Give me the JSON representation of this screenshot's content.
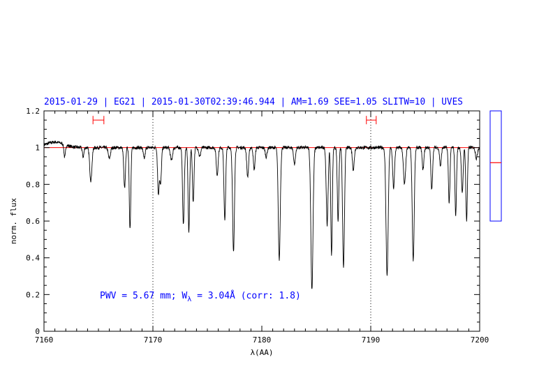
{
  "chart_data": {
    "type": "line",
    "title": "2015-01-29 | EG21 | 2015-01-30T02:39:46.944 | AM=1.69 SEE=1.05 SLITW=10 | UVES",
    "xlabel": "λ(AA)",
    "ylabel": "norm. flux",
    "xlim": [
      7160,
      7200
    ],
    "ylim": [
      0,
      1.2
    ],
    "xticks": [
      7160,
      7170,
      7180,
      7190,
      7200
    ],
    "yticks": [
      0,
      0.2,
      0.4,
      0.6,
      0.8,
      1,
      1.2
    ],
    "vlines_dotted": [
      7170,
      7190
    ],
    "reference_line": 1.0,
    "continuum_windows": [
      {
        "x0": 7164.5,
        "x1": 7165.5,
        "y": 1.15
      },
      {
        "x0": 7189.6,
        "x1": 7190.5,
        "y": 1.15
      }
    ],
    "annotation": {
      "prefix": "PWV = 5.67 mm; W",
      "subscript": "λ",
      "suffix": " = 3.04Å (corr: 1.8)"
    },
    "colors": {
      "title": "#0000ff",
      "annotation": "#0000ff",
      "reference": "#ff0000",
      "spectrum": "#000000",
      "frame": "#000000",
      "sidebar_frame": "#0000ff",
      "sidebar_mark": "#ff0000"
    },
    "sidebar_level": 0.53,
    "continuum_level": 1.0,
    "absorption_lines": [
      [
        7161.9,
        0.07,
        0.1
      ],
      [
        7163.6,
        0.05,
        0.1
      ],
      [
        7164.3,
        0.18,
        0.14
      ],
      [
        7166.0,
        0.06,
        0.14
      ],
      [
        7167.4,
        0.22,
        0.11
      ],
      [
        7167.9,
        0.44,
        0.1
      ],
      [
        7169.2,
        0.06,
        0.12
      ],
      [
        7170.5,
        0.25,
        0.1
      ],
      [
        7170.7,
        0.2,
        0.11
      ],
      [
        7171.7,
        0.07,
        0.14
      ],
      [
        7172.8,
        0.42,
        0.11
      ],
      [
        7173.3,
        0.46,
        0.1
      ],
      [
        7173.7,
        0.3,
        0.1
      ],
      [
        7174.3,
        0.05,
        0.12
      ],
      [
        7175.9,
        0.15,
        0.12
      ],
      [
        7176.6,
        0.39,
        0.11
      ],
      [
        7177.4,
        0.57,
        0.12
      ],
      [
        7178.7,
        0.16,
        0.12
      ],
      [
        7179.3,
        0.12,
        0.11
      ],
      [
        7180.4,
        0.05,
        0.12
      ],
      [
        7181.6,
        0.61,
        0.13
      ],
      [
        7183.0,
        0.09,
        0.12
      ],
      [
        7184.6,
        0.77,
        0.14
      ],
      [
        7186.0,
        0.42,
        0.12
      ],
      [
        7186.4,
        0.58,
        0.1
      ],
      [
        7187.0,
        0.4,
        0.1
      ],
      [
        7187.5,
        0.66,
        0.12
      ],
      [
        7188.4,
        0.12,
        0.12
      ],
      [
        7191.5,
        0.7,
        0.14
      ],
      [
        7192.1,
        0.22,
        0.12
      ],
      [
        7193.1,
        0.2,
        0.14
      ],
      [
        7193.9,
        0.61,
        0.13
      ],
      [
        7194.8,
        0.12,
        0.11
      ],
      [
        7195.6,
        0.23,
        0.11
      ],
      [
        7196.4,
        0.1,
        0.11
      ],
      [
        7197.2,
        0.3,
        0.1
      ],
      [
        7197.8,
        0.37,
        0.1
      ],
      [
        7198.4,
        0.25,
        0.11
      ],
      [
        7198.8,
        0.4,
        0.1
      ],
      [
        7199.7,
        0.06,
        0.12
      ]
    ]
  }
}
